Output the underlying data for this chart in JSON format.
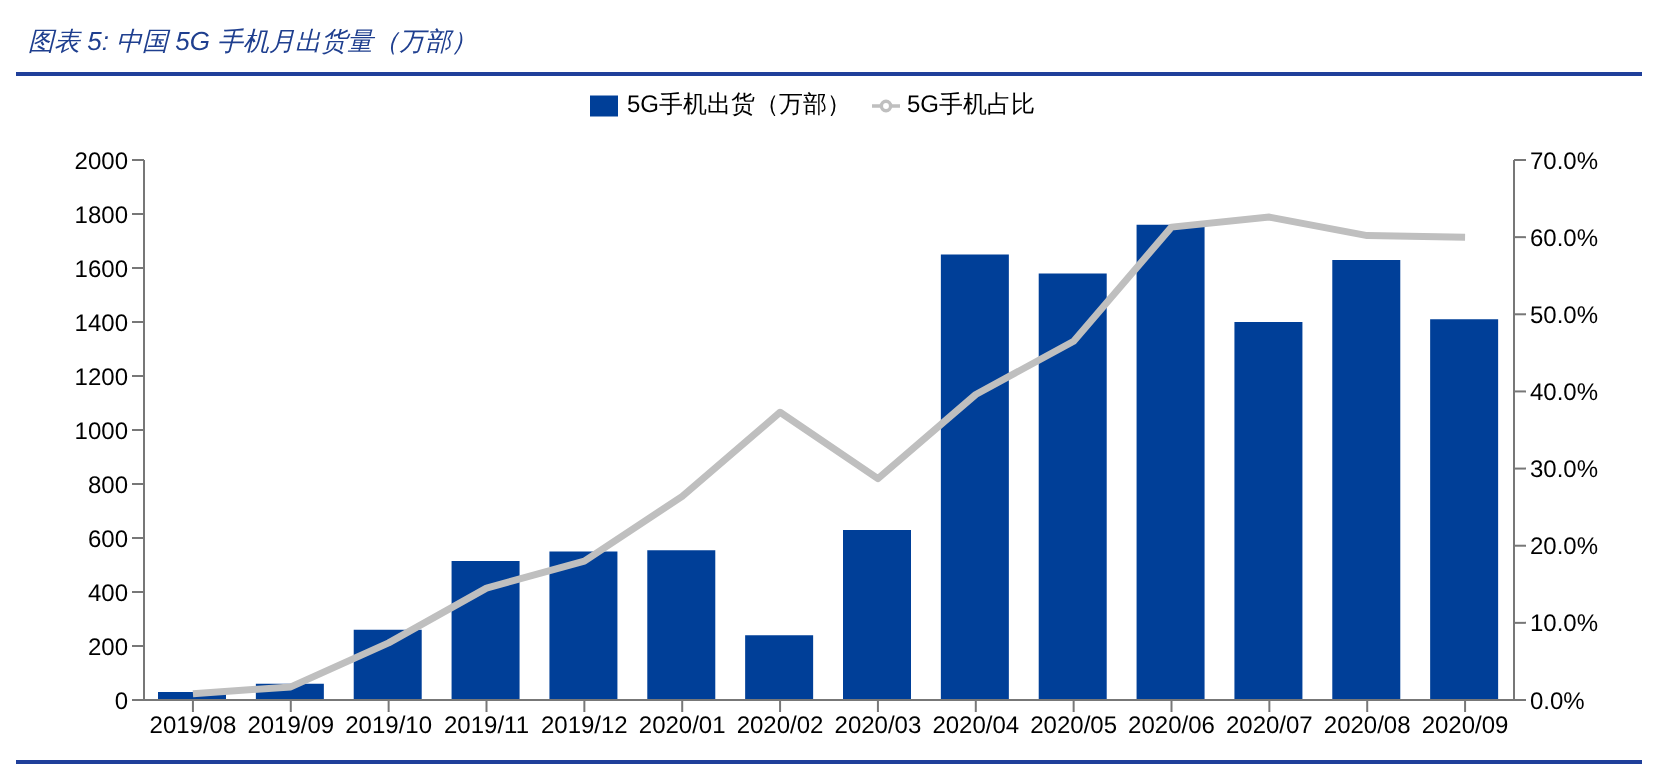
{
  "chart_data": {
    "type": "bar",
    "title": "图表 5:  中国 5G 手机月出货量（万部）",
    "categories": [
      "2019/08",
      "2019/09",
      "2019/10",
      "2019/11",
      "2019/12",
      "2020/01",
      "2020/02",
      "2020/03",
      "2020/04",
      "2020/05",
      "2020/06",
      "2020/07",
      "2020/08",
      "2020/09"
    ],
    "series": [
      {
        "name": "5G手机出货（万部）",
        "color": "#003f98",
        "values": [
          30,
          60,
          260,
          515,
          550,
          555,
          240,
          630,
          1650,
          1580,
          1760,
          1400,
          1630,
          1410
        ]
      },
      {
        "name": "5G手机占比",
        "type": "line",
        "axis": "y2",
        "color": "#bfbfbf",
        "values": [
          0.8,
          1.7,
          7.4,
          14.5,
          18,
          26.4,
          37.3,
          28.7,
          39.6,
          46.5,
          61.3,
          62.6,
          60.2,
          60.0
        ]
      }
    ],
    "ylim": [
      0,
      2000
    ],
    "yticks": [
      0,
      200,
      400,
      600,
      800,
      1000,
      1200,
      1400,
      1600,
      1800,
      2000
    ],
    "y2lim": [
      0,
      70
    ],
    "y2ticks": [
      {
        "value": 0,
        "label": "0.0%"
      },
      {
        "value": 10,
        "label": "10.0%"
      },
      {
        "value": 20,
        "label": "20.0%"
      },
      {
        "value": 30,
        "label": "30.0%"
      },
      {
        "value": 40,
        "label": "40.0%"
      },
      {
        "value": 50,
        "label": "50.0%"
      },
      {
        "value": 60,
        "label": "60.0%"
      },
      {
        "value": 70,
        "label": "70.0%"
      }
    ],
    "grid": false,
    "legend": "top",
    "marker": "none",
    "line_style": "solid"
  }
}
